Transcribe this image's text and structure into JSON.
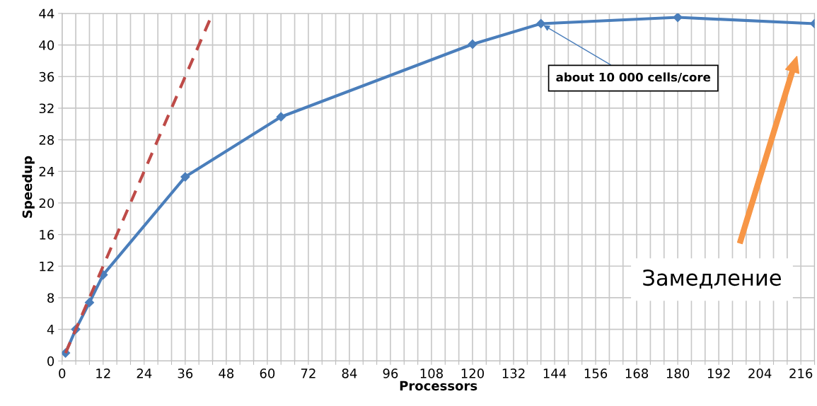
{
  "chart_data": {
    "type": "line",
    "xlabel": "Processors",
    "ylabel": "Speedup",
    "series": [
      {
        "color": "#4a7ebb",
        "x": [
          1,
          4,
          8,
          12,
          36,
          64,
          120,
          140,
          180,
          220
        ],
        "values": [
          1,
          4,
          7.4,
          10.9,
          23.3,
          30.9,
          40.1,
          42.7,
          43.5,
          42.7
        ],
        "marker": "diamond",
        "line_style": "solid"
      },
      {
        "color": "#be4b48",
        "x": [
          1,
          44
        ],
        "values": [
          1,
          44
        ],
        "marker": "none",
        "line_style": "dashed"
      }
    ],
    "xlim": [
      0,
      220
    ],
    "ylim": [
      0,
      44
    ],
    "xticks": [
      0,
      {
        "value": 4,
        "label": null
      },
      {
        "value": 8,
        "label": null
      },
      12,
      {
        "value": 16,
        "label": null
      },
      {
        "value": 20,
        "label": null
      },
      24,
      {
        "value": 28,
        "label": null
      },
      {
        "value": 32,
        "label": null
      },
      36,
      {
        "value": 40,
        "label": null
      },
      {
        "value": 44,
        "label": null
      },
      48,
      {
        "value": 52,
        "label": null
      },
      {
        "value": 56,
        "label": null
      },
      60,
      {
        "value": 64,
        "label": null
      },
      {
        "value": 68,
        "label": null
      },
      72,
      {
        "value": 76,
        "label": null
      },
      {
        "value": 80,
        "label": null
      },
      84,
      {
        "value": 88,
        "label": null
      },
      {
        "value": 92,
        "label": null
      },
      96,
      {
        "value": 100,
        "label": null
      },
      {
        "value": 104,
        "label": null
      },
      108,
      {
        "value": 112,
        "label": null
      },
      {
        "value": 116,
        "label": null
      },
      120,
      {
        "value": 124,
        "label": null
      },
      {
        "value": 128,
        "label": null
      },
      132,
      {
        "value": 136,
        "label": null
      },
      {
        "value": 140,
        "label": null
      },
      144,
      {
        "value": 148,
        "label": null
      },
      {
        "value": 152,
        "label": null
      },
      156,
      {
        "value": 160,
        "label": null
      },
      {
        "value": 164,
        "label": null
      },
      168,
      {
        "value": 172,
        "label": null
      },
      {
        "value": 176,
        "label": null
      },
      180,
      {
        "value": 184,
        "label": null
      },
      {
        "value": 188,
        "label": null
      },
      192,
      {
        "value": 196,
        "label": null
      },
      {
        "value": 200,
        "label": null
      },
      204,
      {
        "value": 208,
        "label": null
      },
      {
        "value": 212,
        "label": null
      },
      216,
      {
        "value": 220,
        "label": null
      }
    ],
    "yticks": [
      0,
      4,
      8,
      12,
      16,
      20,
      24,
      28,
      32,
      36,
      40,
      44
    ],
    "grid": true,
    "legend": false,
    "annotations": [
      {
        "text": "about 10 000 cells/core",
        "x": 140,
        "y": 42.7
      },
      "Замедление"
    ]
  }
}
